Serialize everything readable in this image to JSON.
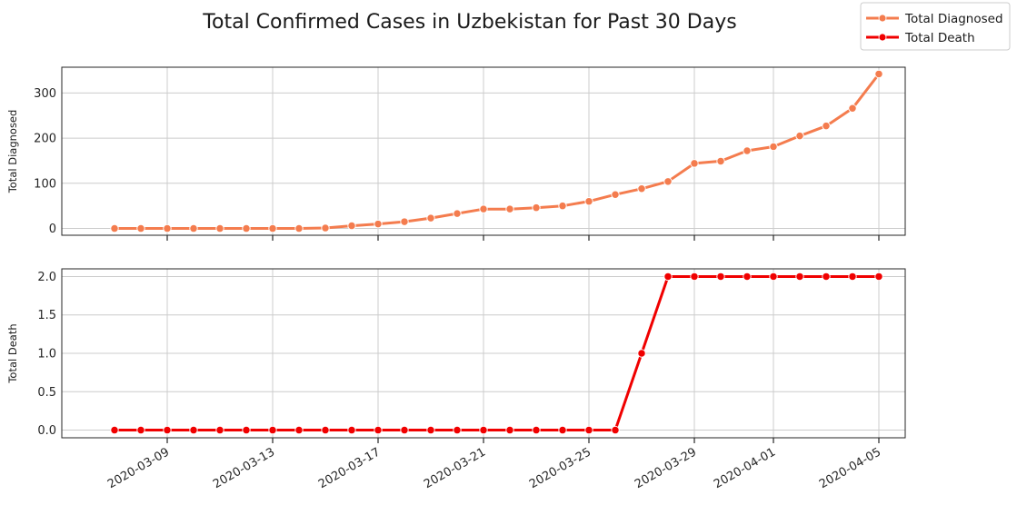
{
  "title": "Total Confirmed Cases in Uzbekistan for Past 30 Days",
  "legend": [
    {
      "label": "Total Diagnosed",
      "color": "#f47c4e"
    },
    {
      "label": "Total Death",
      "color": "#f00000"
    }
  ],
  "chart_data": [
    {
      "type": "line",
      "ylabel": "Total Diagnosed",
      "xlabel": "",
      "ylim": [
        -15,
        357
      ],
      "yticks": [
        "0",
        "100",
        "200",
        "300"
      ],
      "ytick_values": [
        0,
        100,
        200,
        300
      ],
      "color": "#f47c4e",
      "grid": true,
      "series": [
        {
          "name": "Total Diagnosed",
          "x": [
            "2020-03-07",
            "2020-03-08",
            "2020-03-09",
            "2020-03-10",
            "2020-03-11",
            "2020-03-12",
            "2020-03-13",
            "2020-03-14",
            "2020-03-15",
            "2020-03-16",
            "2020-03-17",
            "2020-03-18",
            "2020-03-19",
            "2020-03-20",
            "2020-03-21",
            "2020-03-22",
            "2020-03-23",
            "2020-03-24",
            "2020-03-25",
            "2020-03-26",
            "2020-03-27",
            "2020-03-28",
            "2020-03-29",
            "2020-03-30",
            "2020-03-31",
            "2020-04-01",
            "2020-04-02",
            "2020-04-03",
            "2020-04-04",
            "2020-04-05"
          ],
          "values": [
            0,
            0,
            0,
            0,
            0,
            0,
            0,
            0,
            1,
            6,
            10,
            15,
            23,
            33,
            43,
            43,
            46,
            50,
            60,
            75,
            88,
            104,
            144,
            149,
            172,
            181,
            205,
            227,
            266,
            342
          ]
        }
      ]
    },
    {
      "type": "line",
      "ylabel": "Total Death",
      "xlabel": "",
      "ylim": [
        -0.1,
        2.1
      ],
      "yticks": [
        "0.0",
        "0.5",
        "1.0",
        "1.5",
        "2.0"
      ],
      "ytick_values": [
        0,
        0.5,
        1.0,
        1.5,
        2.0
      ],
      "color": "#f00000",
      "grid": true,
      "series": [
        {
          "name": "Total Death",
          "x": [
            "2020-03-07",
            "2020-03-08",
            "2020-03-09",
            "2020-03-10",
            "2020-03-11",
            "2020-03-12",
            "2020-03-13",
            "2020-03-14",
            "2020-03-15",
            "2020-03-16",
            "2020-03-17",
            "2020-03-18",
            "2020-03-19",
            "2020-03-20",
            "2020-03-21",
            "2020-03-22",
            "2020-03-23",
            "2020-03-24",
            "2020-03-25",
            "2020-03-26",
            "2020-03-27",
            "2020-03-28",
            "2020-03-29",
            "2020-03-30",
            "2020-03-31",
            "2020-04-01",
            "2020-04-02",
            "2020-04-03",
            "2020-04-04",
            "2020-04-05"
          ],
          "values": [
            0,
            0,
            0,
            0,
            0,
            0,
            0,
            0,
            0,
            0,
            0,
            0,
            0,
            0,
            0,
            0,
            0,
            0,
            0,
            0,
            1,
            2,
            2,
            2,
            2,
            2,
            2,
            2,
            2,
            2
          ]
        }
      ]
    }
  ],
  "x_axis": {
    "ticks": [
      "2020-03-09",
      "2020-03-13",
      "2020-03-17",
      "2020-03-21",
      "2020-03-25",
      "2020-03-29",
      "2020-04-01",
      "2020-04-05"
    ],
    "xlim": [
      "2020-03-05",
      "2020-04-06"
    ]
  }
}
